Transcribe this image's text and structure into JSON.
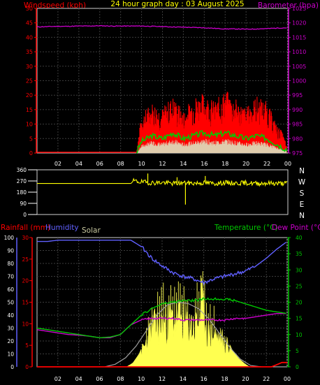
{
  "colors": {
    "background": "#000000",
    "plot_bg": "#000000",
    "grid": "#3c3c3c",
    "frame": "#cfcfcf",
    "text": "#ffffff",
    "title": "#ffff00",
    "wind_label": "#ff0000",
    "baro": "#cc00cc",
    "gust": "#ff0000",
    "avg_wind": "#00cc00",
    "wind_white": "#d8ffd8",
    "direction": "#ffff00",
    "humidity": "#6060ff",
    "temperature": "#00c800",
    "dewpoint": "#cc00cc",
    "rain": "#ff0000",
    "solar_fill": "#ffff50",
    "solar_max": "#a0a0a0",
    "solar_label": "#c8c8a0"
  },
  "header": {
    "windspeed_label": "Windspeed (kph)",
    "title": "24 hour graph day : 03 August 2025",
    "barometer_label": "Barometer (hpa)"
  },
  "chart_data": [
    {
      "type": "line",
      "name": "wind-barometer",
      "title": "24 hour graph day : 03 August 2025",
      "ylabel_left": "Windspeed (kph)",
      "ylabel_right": "Barometer (hpa)",
      "x_ticks": [
        "02",
        "04",
        "06",
        "08",
        "10",
        "12",
        "14",
        "16",
        "18",
        "20",
        "22",
        "00"
      ],
      "y_left_ticks": [
        "0",
        "5",
        "10",
        "15",
        "20",
        "25",
        "30",
        "35",
        "40",
        "45",
        "50"
      ],
      "y_right_ticks": [
        "975",
        "980",
        "985",
        "990",
        "995",
        "1000",
        "1005",
        "1010",
        "1015",
        "1020",
        "1025"
      ],
      "ylim_left": [
        0,
        50
      ],
      "ylim_right": [
        975,
        1025
      ],
      "series": [
        {
          "key": "barometer",
          "axis": "right",
          "x": [
            0,
            1,
            2,
            3,
            4,
            5,
            6,
            7,
            8,
            9,
            10,
            11,
            12,
            13,
            14,
            15,
            16,
            17,
            18,
            19,
            20,
            21,
            22,
            23,
            24
          ],
          "y": [
            1018.6,
            1018.7,
            1018.8,
            1018.8,
            1018.9,
            1018.9,
            1019,
            1018.9,
            1018.9,
            1018.9,
            1018.9,
            1018.8,
            1018.7,
            1018.6,
            1018.5,
            1018.4,
            1018.3,
            1018.1,
            1017.9,
            1017.9,
            1017.8,
            1017.9,
            1018,
            1018.2,
            1018.3
          ]
        },
        {
          "key": "gust",
          "axis": "left",
          "x": [
            0,
            9.5,
            10,
            11,
            12,
            13,
            14,
            15,
            16,
            17,
            18,
            19,
            20,
            21,
            22,
            23,
            23.5,
            24
          ],
          "y": [
            0,
            0,
            13,
            17,
            15,
            19,
            14,
            19,
            20,
            17,
            21,
            18,
            15,
            19,
            17,
            9,
            7,
            1
          ]
        },
        {
          "key": "avg_wind",
          "axis": "left",
          "x": [
            0,
            9.5,
            10,
            11,
            12,
            13,
            14,
            15,
            16,
            17,
            18,
            19,
            20,
            21,
            22,
            23,
            23.5,
            24
          ],
          "y": [
            0,
            0,
            4,
            6,
            5,
            7,
            5,
            6,
            7,
            6,
            7,
            6,
            5,
            6,
            5,
            3,
            2,
            1
          ]
        }
      ]
    },
    {
      "type": "line",
      "name": "wind-direction",
      "y_ticks": [
        "360",
        "270",
        "180",
        "90",
        "0"
      ],
      "compass_labels": [
        "N",
        "W",
        "S",
        "E",
        "N"
      ],
      "ylim": [
        0,
        360
      ],
      "series": [
        {
          "key": "direction",
          "x": [
            0,
            9,
            9.2,
            10,
            11,
            12,
            13,
            14,
            15,
            16,
            17,
            18,
            19,
            20,
            21,
            22,
            23,
            24
          ],
          "y": [
            250,
            250,
            270,
            262,
            255,
            258,
            250,
            255,
            252,
            255,
            250,
            256,
            252,
            255,
            250,
            253,
            250,
            252
          ]
        }
      ]
    },
    {
      "type": "line",
      "name": "climate",
      "labels": {
        "rainfall": "Rainfall (mm)",
        "humidity": "Humidity",
        "solar": "Solar",
        "temperature": "Temperature (°C)",
        "dewpoint": "Dew Point (°C)"
      },
      "x_ticks": [
        "02",
        "04",
        "06",
        "08",
        "10",
        "12",
        "14",
        "16",
        "18",
        "20",
        "22",
        "00"
      ],
      "y_humidity_ticks": [
        "0",
        "10",
        "20",
        "30",
        "40",
        "50",
        "60",
        "70",
        "80",
        "90",
        "100"
      ],
      "y_rain_ticks": [
        "0",
        "5",
        "10",
        "15",
        "20",
        "25",
        "30"
      ],
      "y_temp_ticks": [
        "0",
        "5",
        "10",
        "15",
        "20",
        "25",
        "30",
        "35",
        "40"
      ],
      "ylim_humidity": [
        0,
        100
      ],
      "ylim_rain": [
        0,
        30
      ],
      "ylim_temp": [
        0,
        40
      ],
      "series": [
        {
          "key": "humidity",
          "axis": "humidity",
          "x": [
            0,
            1,
            2,
            3,
            4,
            5,
            6,
            7,
            8,
            9,
            10,
            11,
            12,
            13,
            14,
            15,
            16,
            17,
            18,
            19,
            20,
            21,
            22,
            23,
            24
          ],
          "y": [
            97,
            97,
            98,
            98,
            98,
            98,
            98,
            98,
            98,
            98,
            93,
            84,
            78,
            73,
            70,
            68,
            65,
            68,
            70,
            72,
            74,
            78,
            84,
            91,
            97
          ]
        },
        {
          "key": "temperature",
          "axis": "temp",
          "x": [
            0,
            1,
            2,
            3,
            4,
            5,
            6,
            7,
            8,
            9,
            10,
            11,
            12,
            13,
            14,
            15,
            16,
            17,
            18,
            19,
            20,
            21,
            22,
            23,
            24
          ],
          "y": [
            12,
            11.5,
            11,
            10.5,
            10,
            9.5,
            9,
            9.2,
            10,
            13,
            16,
            18,
            19.5,
            20,
            20.5,
            20.5,
            21,
            21,
            21,
            20.5,
            19.5,
            18.5,
            17.5,
            17,
            16.5
          ]
        },
        {
          "key": "dewpoint",
          "axis": "temp",
          "x": [
            0,
            1,
            2,
            3,
            4,
            5,
            6,
            7,
            8,
            9,
            10,
            11,
            12,
            13,
            14,
            15,
            16,
            17,
            18,
            19,
            20,
            21,
            22,
            23,
            24
          ],
          "y": [
            11.5,
            11,
            10.5,
            10,
            9.8,
            9.5,
            9,
            9,
            10,
            13,
            14.5,
            15,
            15,
            15,
            14.5,
            14.5,
            14.5,
            14.5,
            14.5,
            15,
            15,
            15.5,
            16,
            16.5,
            16.5
          ]
        },
        {
          "key": "rain",
          "axis": "rain",
          "x": [
            0,
            22.5,
            23,
            23.5,
            24
          ],
          "y": [
            0,
            0,
            0.5,
            1,
            1
          ]
        },
        {
          "key": "solar_max",
          "axis": "humidity",
          "x": [
            6.5,
            7.5,
            8.5,
            9.5,
            10.5,
            11.5,
            12.5,
            13.5,
            14.5,
            15.5,
            16.5,
            17.5,
            18.5,
            19.5,
            20.5,
            21.5
          ],
          "y": [
            0,
            2,
            7,
            16,
            28,
            40,
            48,
            50,
            49,
            45,
            37,
            26,
            15,
            6,
            1,
            0
          ]
        },
        {
          "key": "solar",
          "axis": "humidity",
          "x": [
            8.6,
            9.2,
            9.8,
            10.4,
            11,
            11.6,
            12.2,
            12.8,
            13.4,
            14,
            14.6,
            15.2,
            15.8,
            16.4,
            17,
            17.6,
            18.2,
            18.8,
            19.4,
            20,
            20.4
          ],
          "y": [
            0,
            3,
            10,
            22,
            38,
            42,
            44,
            46,
            50,
            45,
            40,
            38,
            60,
            33,
            32,
            28,
            22,
            12,
            6,
            2,
            0
          ]
        }
      ]
    }
  ]
}
